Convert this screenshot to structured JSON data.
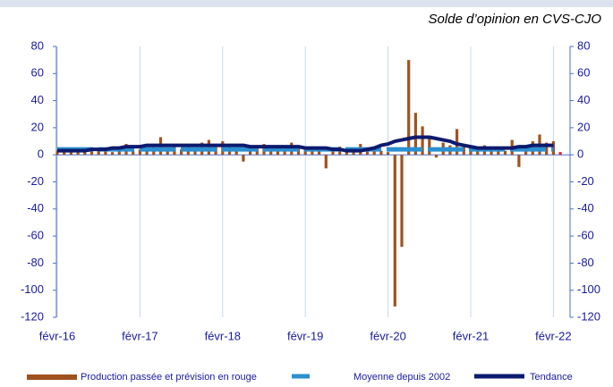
{
  "chart_data": {
    "type": "bar",
    "title": "Solde d’opinion en CVS-CJO",
    "categories": [
      "févr-16",
      null,
      null,
      null,
      null,
      null,
      null,
      null,
      null,
      null,
      null,
      null,
      "févr-17",
      null,
      null,
      null,
      null,
      null,
      null,
      null,
      null,
      null,
      null,
      null,
      "févr-18",
      null,
      null,
      null,
      null,
      null,
      null,
      null,
      null,
      null,
      null,
      null,
      "févr-19",
      null,
      null,
      null,
      null,
      null,
      null,
      null,
      null,
      null,
      null,
      null,
      "févr-20",
      null,
      null,
      null,
      null,
      null,
      null,
      null,
      null,
      null,
      null,
      null,
      "févr-21",
      null,
      null,
      null,
      null,
      null,
      null,
      null,
      null,
      null,
      null,
      null,
      "févr-22",
      null
    ],
    "series": [
      {
        "name": "Production passée et prévision en rouge",
        "color": "#a0521e",
        "last_color": "#e0202a",
        "values": [
          3,
          2,
          4,
          3,
          2,
          3,
          4,
          3,
          2,
          5,
          8,
          3,
          4,
          6,
          8,
          13,
          5,
          7,
          4,
          6,
          3,
          9,
          11,
          7,
          10,
          8,
          5,
          -5,
          7,
          6,
          8,
          5,
          6,
          4,
          9,
          5,
          6,
          4,
          5,
          -10,
          5,
          6,
          4,
          3,
          8,
          5,
          4,
          3,
          2,
          -112,
          -68,
          70,
          31,
          21,
          14,
          -2,
          9,
          7,
          19,
          6,
          6,
          5,
          7,
          4,
          6,
          3,
          11,
          -9,
          7,
          10,
          15,
          9,
          10,
          2
        ]
      },
      {
        "name": "Moyenne depuis 2002",
        "color": "#2b8fd0",
        "style": "dashed",
        "values": [
          4,
          4,
          4,
          4,
          4,
          4,
          4,
          4,
          4,
          4,
          4,
          4,
          4,
          4,
          4,
          4,
          4,
          4,
          4,
          4,
          4,
          4,
          4,
          4,
          4,
          4,
          4,
          4,
          4,
          4,
          4,
          4,
          4,
          4,
          4,
          4,
          4,
          4,
          4,
          4,
          4,
          4,
          4,
          4,
          4,
          4,
          4,
          4,
          4,
          4,
          4,
          4,
          4,
          4,
          4,
          4,
          4,
          4,
          4,
          4,
          4,
          4,
          4,
          4,
          4,
          4,
          4,
          4,
          4,
          4,
          4,
          4,
          4,
          null
        ]
      },
      {
        "name": "Tendance",
        "color": "#0d1a6e",
        "values": [
          3,
          3,
          3,
          3,
          3,
          4,
          4,
          4,
          5,
          5,
          6,
          6,
          6,
          7,
          7,
          7,
          7,
          7,
          7,
          7,
          7,
          7,
          7,
          7,
          7,
          7,
          7,
          7,
          6,
          6,
          6,
          6,
          6,
          6,
          6,
          6,
          5,
          5,
          5,
          5,
          4,
          4,
          3,
          3,
          3,
          4,
          5,
          7,
          8,
          10,
          11,
          12,
          13,
          13,
          13,
          12,
          11,
          10,
          8,
          7,
          6,
          5,
          5,
          5,
          5,
          5,
          5,
          6,
          6,
          7,
          7,
          7,
          7,
          null
        ]
      }
    ],
    "ylim": [
      -120,
      80
    ],
    "yticks": [
      -120,
      -100,
      -80,
      -60,
      -40,
      -20,
      0,
      20,
      40,
      60,
      80
    ],
    "y2lim": [
      -120,
      80
    ],
    "y2ticks": [
      -120,
      -100,
      -80,
      -60,
      -40,
      -20,
      0,
      20,
      40,
      60,
      80
    ],
    "grid": "x",
    "legend": "bottom"
  }
}
